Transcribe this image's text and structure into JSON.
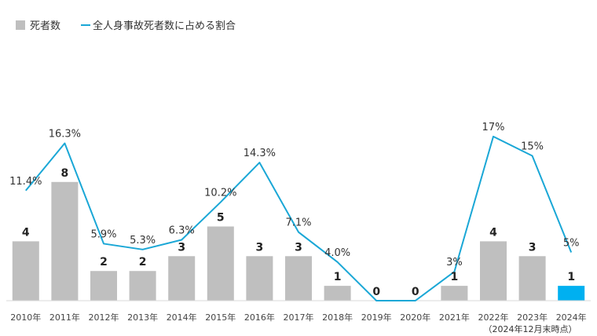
{
  "chart_data": {
    "type": "bar",
    "categories": [
      "2010年",
      "2011年",
      "2012年",
      "2013年",
      "2014年",
      "2015年",
      "2016年",
      "2017年",
      "2018年",
      "2019年",
      "2020年",
      "2021年",
      "2022年",
      "2023年",
      "2024年"
    ],
    "category_note": "（2024年12月末時点）",
    "series": [
      {
        "name": "死者数",
        "kind": "bar",
        "values": [
          4,
          8,
          2,
          2,
          3,
          5,
          3,
          3,
          1,
          0,
          0,
          1,
          4,
          3,
          1
        ],
        "labels": [
          "4",
          "8",
          "2",
          "2",
          "3",
          "5",
          "3",
          "3",
          "1",
          "0",
          "0",
          "1",
          "4",
          "3",
          "1"
        ],
        "color": "#bfbfbf",
        "highlight_color": "#00b0f0",
        "highlight_index": 14
      },
      {
        "name": "全人身事故死者数に占める割合",
        "kind": "line",
        "values": [
          11.4,
          16.3,
          5.9,
          5.3,
          6.3,
          10.2,
          14.3,
          7.1,
          4.0,
          0,
          0,
          3,
          17,
          15,
          5
        ],
        "labels": [
          "11.4%",
          "16.3%",
          "5.9%",
          "5.3%",
          "6.3%",
          "10.2%",
          "14.3%",
          "7.1%",
          "4.0%",
          "",
          "",
          "3%",
          "17%",
          "15%",
          "5%"
        ],
        "color": "#1aa7d6"
      }
    ],
    "grid": false,
    "legend_position": "top-left"
  }
}
